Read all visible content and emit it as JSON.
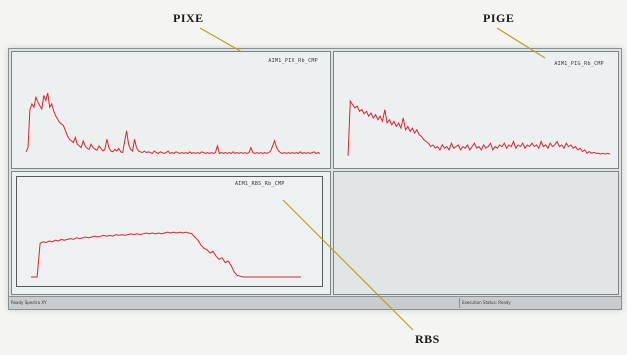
{
  "callouts": {
    "pixe": "PIXE",
    "pige": "PIGE",
    "rbs": "RBS"
  },
  "panes": {
    "pixe": {
      "filename": "AIM1_PIX_Rb_CMP"
    },
    "pige": {
      "filename": "AIM1_PIG_Rb_CMP"
    },
    "rbs": {
      "filename": "AIM1_RBS_Rb_CMP"
    }
  },
  "statusbar": {
    "left": "Ready  Spectra  XY",
    "right": "Execution Status: Ready"
  },
  "colors": {
    "spectrum": "#d8262b",
    "leader": "#b9a21a"
  },
  "spectra": {
    "pixe": {
      "description": "X-ray emission counts per channel",
      "y_max": 100,
      "counts": [
        5,
        10,
        55,
        62,
        58,
        70,
        64,
        60,
        56,
        72,
        66,
        75,
        58,
        62,
        54,
        48,
        44,
        40,
        38,
        36,
        30,
        24,
        20,
        18,
        16,
        22,
        14,
        12,
        10,
        18,
        12,
        9,
        8,
        14,
        10,
        8,
        7,
        12,
        9,
        6,
        8,
        20,
        10,
        6,
        5,
        8,
        6,
        9,
        5,
        4,
        18,
        30,
        14,
        8,
        6,
        20,
        10,
        6,
        5,
        4,
        6,
        4,
        5,
        4,
        3,
        6,
        4,
        3,
        5,
        4,
        3,
        4,
        6,
        3,
        4,
        3,
        5,
        4,
        3,
        4,
        3,
        4,
        3,
        5,
        3,
        4,
        3,
        4,
        3,
        5,
        4,
        3,
        4,
        3,
        4,
        3,
        4,
        12,
        3,
        4,
        3,
        4,
        3,
        4,
        3,
        5,
        3,
        4,
        3,
        4,
        3,
        4,
        3,
        4,
        10,
        4,
        3,
        4,
        3,
        4,
        3,
        4,
        3,
        4,
        6,
        12,
        18,
        10,
        6,
        4,
        3,
        4,
        3,
        4,
        3,
        4,
        3,
        4,
        3,
        5,
        3,
        4,
        3,
        4,
        3,
        4,
        5,
        3,
        4,
        3
      ]
    },
    "pige": {
      "description": "Gamma emission counts per channel",
      "y_max": 100,
      "counts": [
        5,
        70,
        66,
        62,
        64,
        58,
        60,
        55,
        58,
        52,
        56,
        50,
        54,
        48,
        52,
        46,
        60,
        44,
        48,
        42,
        46,
        40,
        44,
        38,
        50,
        36,
        40,
        34,
        38,
        32,
        36,
        30,
        28,
        24,
        22,
        20,
        16,
        18,
        14,
        16,
        12,
        18,
        14,
        16,
        12,
        20,
        14,
        16,
        18,
        12,
        16,
        14,
        18,
        12,
        16,
        20,
        14,
        16,
        12,
        18,
        14,
        16,
        20,
        12,
        16,
        14,
        18,
        16,
        20,
        14,
        18,
        16,
        22,
        14,
        18,
        16,
        20,
        14,
        18,
        16,
        20,
        16,
        18,
        14,
        22,
        16,
        18,
        14,
        20,
        16,
        18,
        22,
        16,
        18,
        14,
        20,
        16,
        18,
        14,
        16,
        12,
        14,
        10,
        12,
        8,
        10,
        8,
        9,
        8,
        8,
        7,
        8,
        7,
        8,
        7
      ]
    },
    "rbs": {
      "description": "Backscattered particle counts per channel",
      "y_max": 100,
      "counts": [
        0,
        0,
        0,
        42,
        44,
        43,
        45,
        44,
        46,
        45,
        47,
        46,
        47,
        48,
        47,
        49,
        48,
        49,
        50,
        49,
        50,
        51,
        50,
        51,
        52,
        51,
        52,
        51,
        53,
        52,
        53,
        52,
        53,
        54,
        53,
        54,
        53,
        54,
        55,
        54,
        55,
        54,
        55,
        54,
        55,
        56,
        55,
        56,
        55,
        56,
        55,
        56,
        55,
        54,
        50,
        46,
        40,
        36,
        34,
        30,
        32,
        26,
        22,
        24,
        18,
        20,
        14,
        6,
        2,
        1,
        0,
        0,
        0,
        0,
        0,
        0,
        0,
        0,
        0,
        0,
        0,
        0,
        0,
        0,
        0,
        0,
        0,
        0,
        0,
        0
      ]
    }
  }
}
